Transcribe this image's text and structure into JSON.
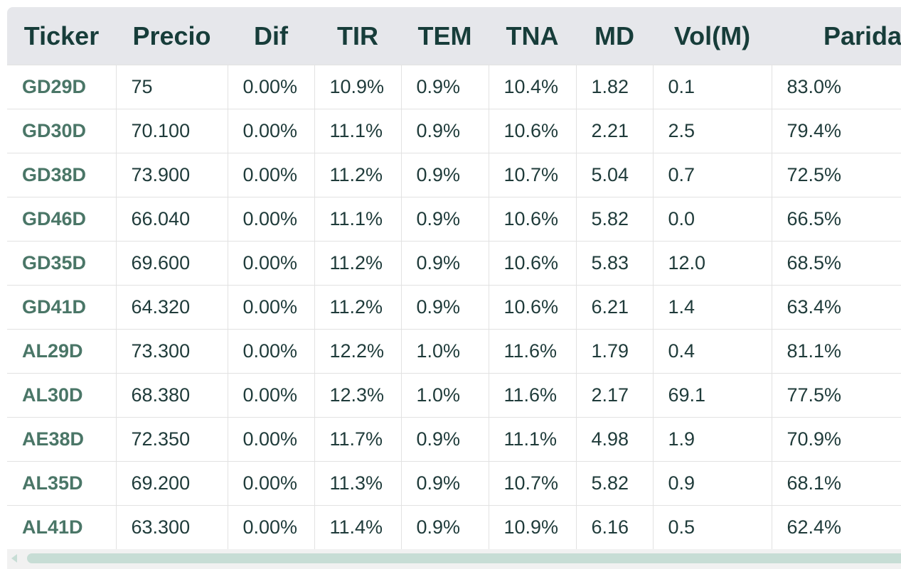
{
  "table": {
    "headers": [
      "Ticker",
      "Precio",
      "Dif",
      "TIR",
      "TEM",
      "TNA",
      "MD",
      "Vol(M)",
      "Paridad"
    ],
    "rows": [
      [
        "GD29D",
        "75",
        "0.00%",
        "10.9%",
        "0.9%",
        "10.4%",
        "1.82",
        "0.1",
        "83.0%"
      ],
      [
        "GD30D",
        "70.100",
        "0.00%",
        "11.1%",
        "0.9%",
        "10.6%",
        "2.21",
        "2.5",
        "79.4%"
      ],
      [
        "GD38D",
        "73.900",
        "0.00%",
        "11.2%",
        "0.9%",
        "10.7%",
        "5.04",
        "0.7",
        "72.5%"
      ],
      [
        "GD46D",
        "66.040",
        "0.00%",
        "11.1%",
        "0.9%",
        "10.6%",
        "5.82",
        "0.0",
        "66.5%"
      ],
      [
        "GD35D",
        "69.600",
        "0.00%",
        "11.2%",
        "0.9%",
        "10.6%",
        "5.83",
        "12.0",
        "68.5%"
      ],
      [
        "GD41D",
        "64.320",
        "0.00%",
        "11.2%",
        "0.9%",
        "10.6%",
        "6.21",
        "1.4",
        "63.4%"
      ],
      [
        "AL29D",
        "73.300",
        "0.00%",
        "12.2%",
        "1.0%",
        "11.6%",
        "1.79",
        "0.4",
        "81.1%"
      ],
      [
        "AL30D",
        "68.380",
        "0.00%",
        "12.3%",
        "1.0%",
        "11.6%",
        "2.17",
        "69.1",
        "77.5%"
      ],
      [
        "AE38D",
        "72.350",
        "0.00%",
        "11.7%",
        "0.9%",
        "11.1%",
        "4.98",
        "1.9",
        "70.9%"
      ],
      [
        "AL35D",
        "69.200",
        "0.00%",
        "11.3%",
        "0.9%",
        "10.7%",
        "5.82",
        "0.9",
        "68.1%"
      ],
      [
        "AL41D",
        "63.300",
        "0.00%",
        "11.4%",
        "0.9%",
        "10.9%",
        "6.16",
        "0.5",
        "62.4%"
      ]
    ]
  }
}
